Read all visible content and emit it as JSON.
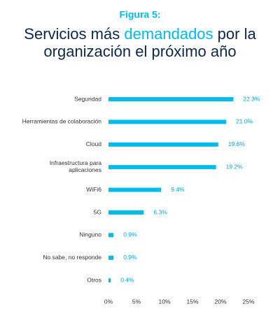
{
  "chart_data": {
    "type": "bar",
    "orientation": "horizontal",
    "label": "Figura 5:",
    "title_parts": [
      "Servicios más ",
      "demandados",
      " por la",
      "organización el próximo año"
    ],
    "categories": [
      "Seguridad",
      "Herramientas de colaboración",
      "Cloud",
      "Infraestructura para aplicaciones",
      "WiFi6",
      "5G",
      "Ninguno",
      "No sabe, no responde",
      "Otros"
    ],
    "values": [
      22.3,
      21.0,
      19.6,
      19.2,
      9.4,
      6.3,
      0.9,
      0.9,
      0.4
    ],
    "value_labels": [
      "22.3%",
      "21.0%",
      "19.6%",
      "19.2%",
      "9.4%",
      "6.3%",
      "0.9%",
      "0.9%",
      "0.4%"
    ],
    "color": "#00bceb",
    "xlim": [
      0,
      25
    ],
    "xticks": [
      {
        "value": 0,
        "label": "0%"
      },
      {
        "value": 5,
        "label": "5%"
      },
      {
        "value": 10,
        "label": "10%"
      },
      {
        "value": 15,
        "label": "15%"
      },
      {
        "value": 20,
        "label": "20%"
      },
      {
        "value": 25,
        "label": "25%"
      }
    ],
    "grid": false
  }
}
